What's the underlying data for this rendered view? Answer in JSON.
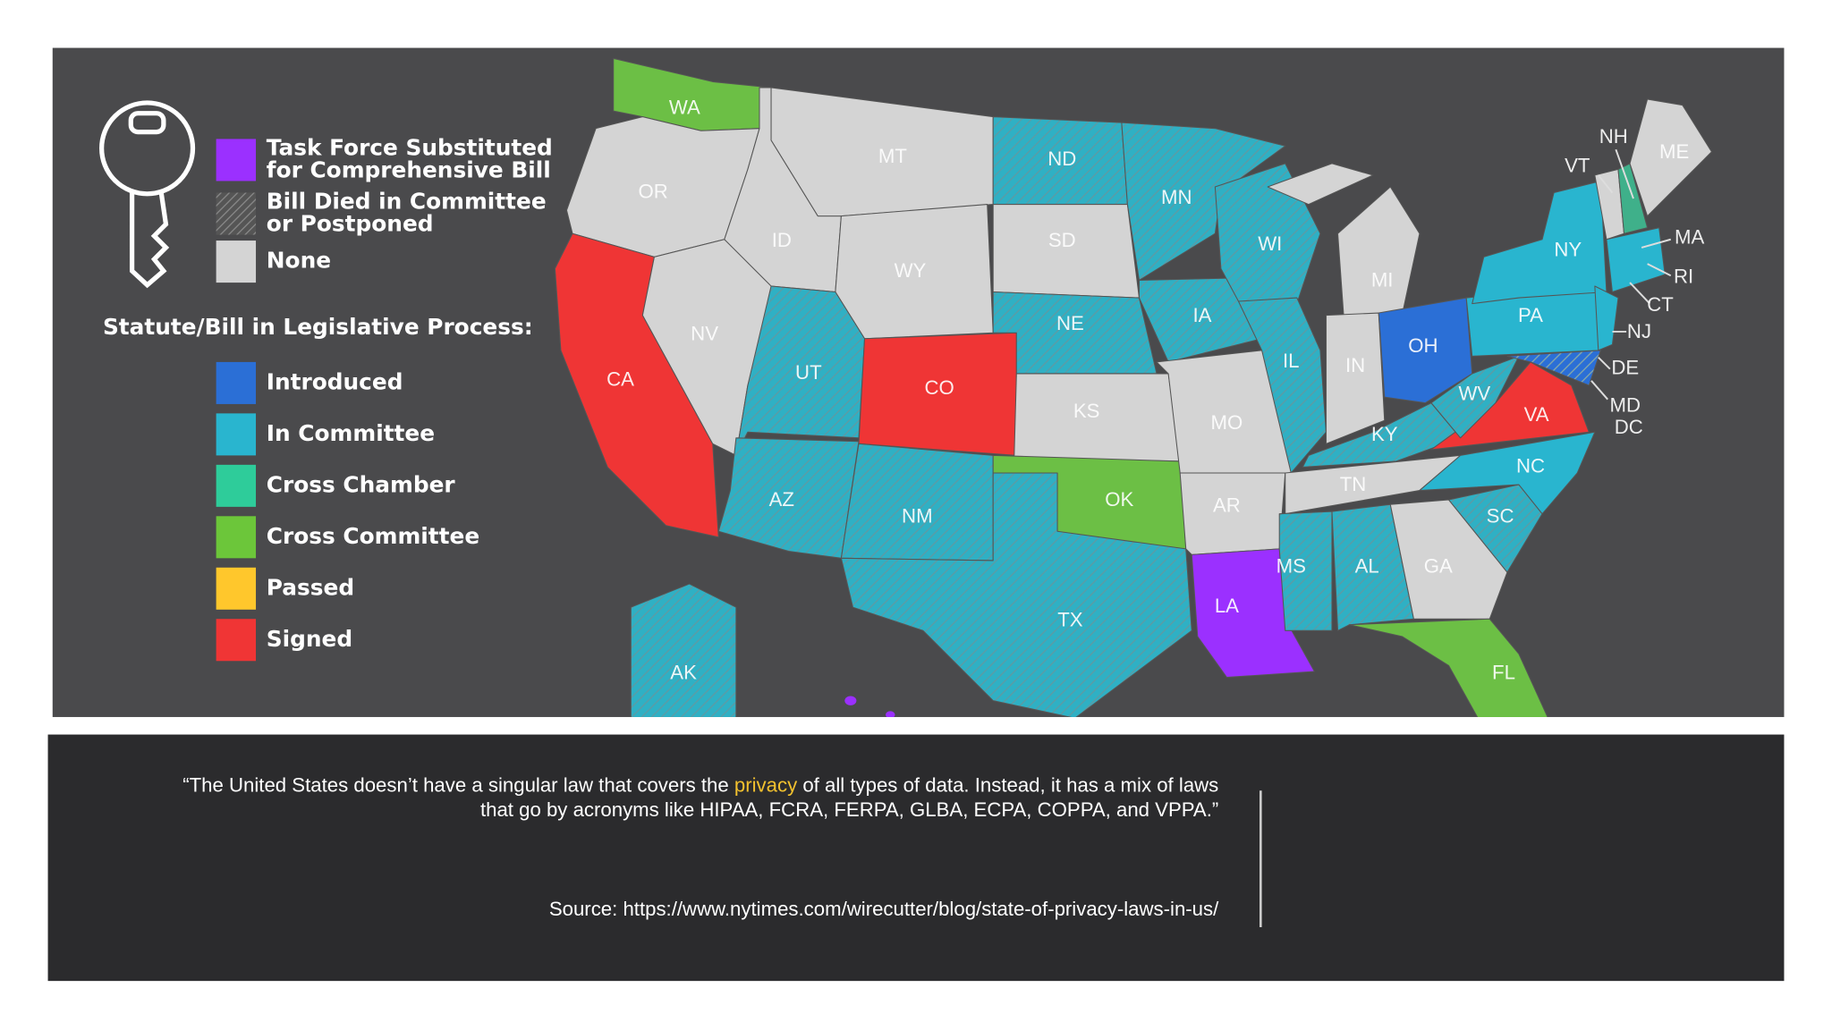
{
  "map": {
    "legend": {
      "top_items": [
        {
          "label": [
            "Task Force Substituted",
            "for Comprehensive Bill"
          ],
          "color": "#9b30ff"
        },
        {
          "label": [
            "Bill Died in Committee",
            "or Postponed"
          ],
          "color": "#6a6a6a"
        },
        {
          "label": [
            "None"
          ],
          "color": "#d4d4d4"
        }
      ],
      "heading": "Statute/Bill in Legislative Process:",
      "items": [
        {
          "label": "Introduced",
          "color": "#2b6fd6"
        },
        {
          "label": "In Committee",
          "color": "#29b5cf"
        },
        {
          "label": "Cross Chamber",
          "color": "#2ecc9a"
        },
        {
          "label": "Cross Committee",
          "color": "#6cc63a"
        },
        {
          "label": "Passed",
          "color": "#ffc72c"
        },
        {
          "label": "Signed",
          "color": "#f03535"
        }
      ]
    },
    "state_labels": [
      "WA",
      "OR",
      "CA",
      "NV",
      "ID",
      "MT",
      "WY",
      "UT",
      "AZ",
      "CO",
      "NM",
      "ND",
      "SD",
      "NE",
      "KS",
      "OK",
      "TX",
      "MN",
      "IA",
      "MO",
      "AR",
      "LA",
      "WI",
      "IL",
      "MI",
      "IN",
      "OH",
      "KY",
      "TN",
      "MS",
      "AL",
      "GA",
      "FL",
      "SC",
      "NC",
      "VA",
      "WV",
      "PA",
      "NY",
      "NH",
      "VT",
      "ME",
      "MA",
      "RI",
      "CT",
      "NJ",
      "DE",
      "MD",
      "DC",
      "AK"
    ]
  },
  "caption": {
    "quote": {
      "line1_before": "“The United States doesn’t have a singular law that covers the ",
      "line1_highlight": "privacy",
      "line1_after": " of all types of data. Instead, it has a mix of laws",
      "line2": "that go by acronyms like HIPAA, FCRA, FERPA, GLBA, ECPA, COPPA, and VPPA.”"
    },
    "source": "Source:  https://www.nytimes.com/wirecutter/blog/state-of-privacy-laws-in-us/"
  }
}
